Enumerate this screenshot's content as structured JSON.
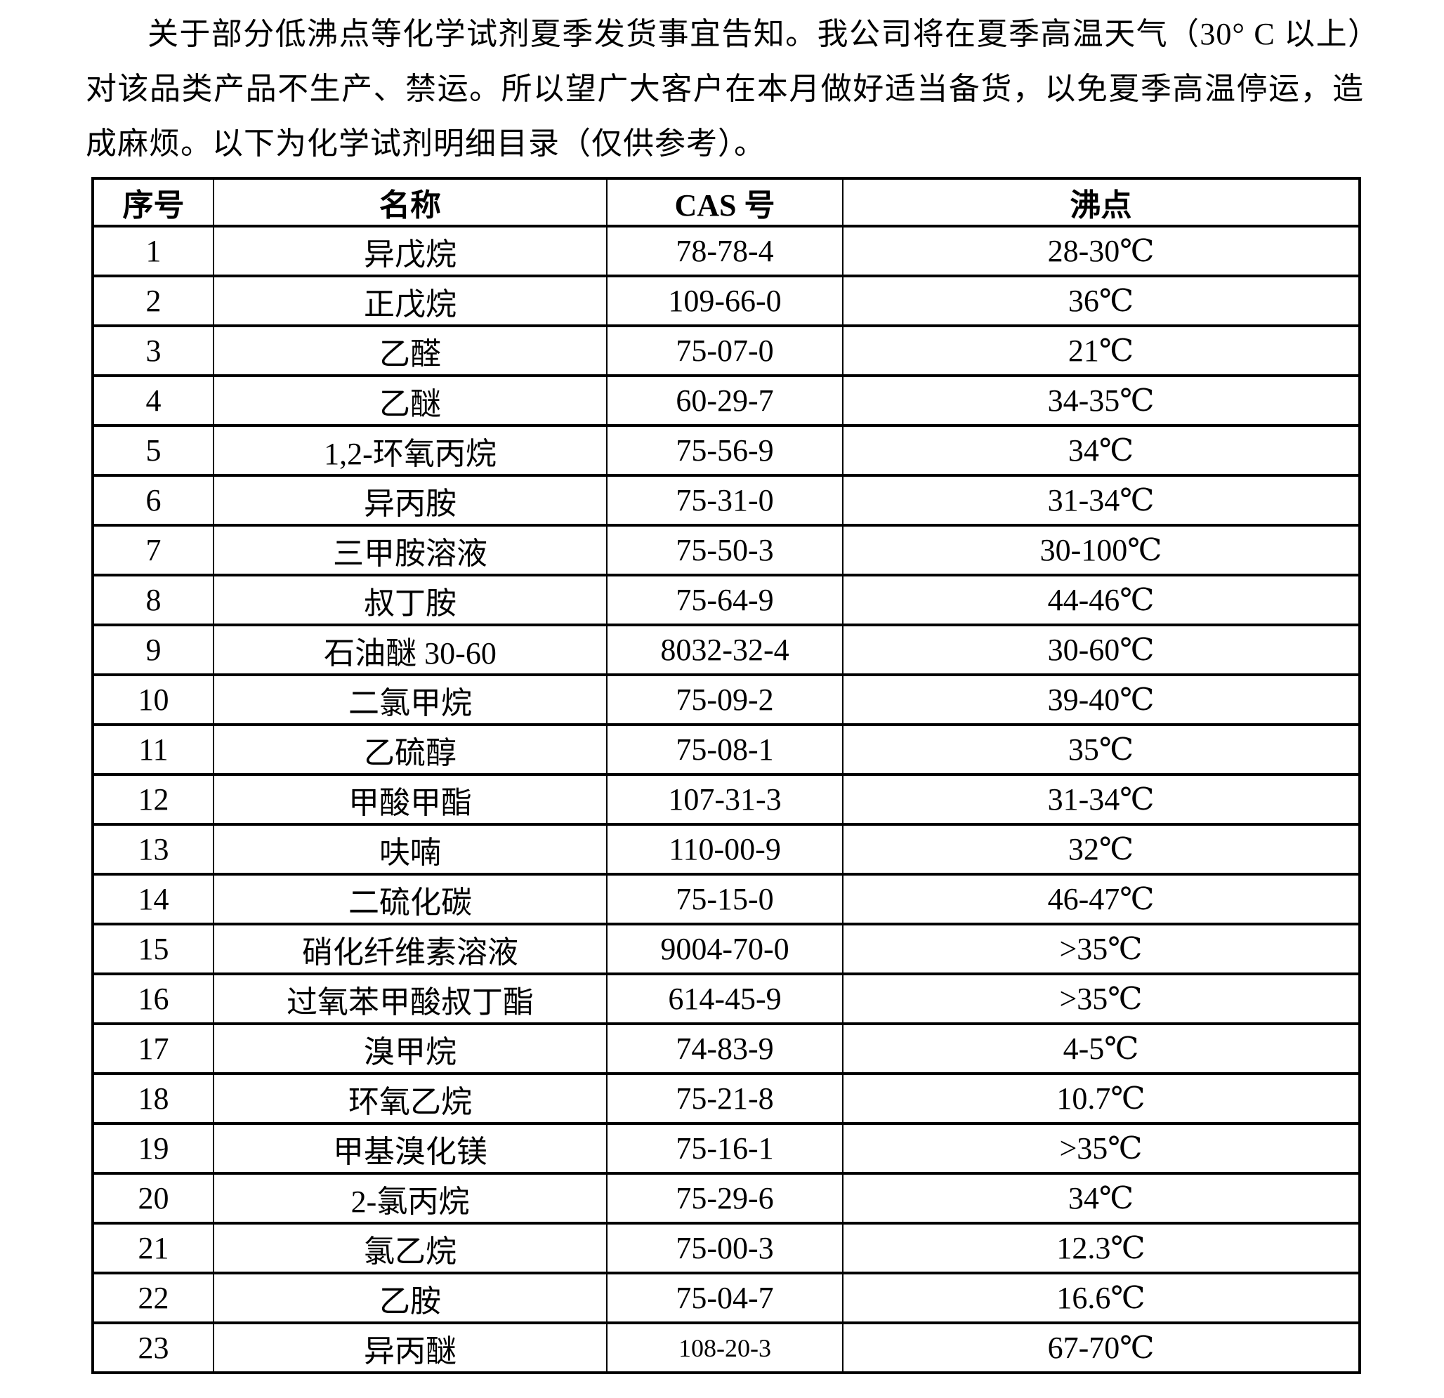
{
  "intro": {
    "text": "关于部分低沸点等化学试剂夏季发货事宜告知。我公司将在夏季高温天气（30° C 以上）对该品类产品不生产、禁运。所以望广大客户在本月做好适当备货，以免夏季高温停运，造成麻烦。以下为化学试剂明细目录（仅供参考）。"
  },
  "table": {
    "headers": [
      "序号",
      "名称",
      "CAS 号",
      "沸点"
    ],
    "rows": [
      {
        "no": "1",
        "name": "异戊烷",
        "cas": "78-78-4",
        "bp": "28-30℃"
      },
      {
        "no": "2",
        "name": "正戊烷",
        "cas": "109-66-0",
        "bp": "36℃"
      },
      {
        "no": "3",
        "name": "乙醛",
        "cas": "75-07-0",
        "bp": "21℃"
      },
      {
        "no": "4",
        "name": "乙醚",
        "cas": "60-29-7",
        "bp": "34-35℃"
      },
      {
        "no": "5",
        "name": "1,2-环氧丙烷",
        "cas": "75-56-9",
        "bp": "34℃"
      },
      {
        "no": "6",
        "name": "异丙胺",
        "cas": "75-31-0",
        "bp": "31-34℃"
      },
      {
        "no": "7",
        "name": "三甲胺溶液",
        "cas": "75-50-3",
        "bp": "30-100℃"
      },
      {
        "no": "8",
        "name": "叔丁胺",
        "cas": "75-64-9",
        "bp": "44-46℃"
      },
      {
        "no": "9",
        "name": "石油醚 30-60",
        "cas": "8032-32-4",
        "bp": "30-60℃"
      },
      {
        "no": "10",
        "name": "二氯甲烷",
        "cas": "75-09-2",
        "bp": "39-40℃"
      },
      {
        "no": "11",
        "name": "乙硫醇",
        "cas": "75-08-1",
        "bp": "35℃"
      },
      {
        "no": "12",
        "name": "甲酸甲酯",
        "cas": "107-31-3",
        "bp": "31-34℃"
      },
      {
        "no": "13",
        "name": "呋喃",
        "cas": "110-00-9",
        "bp": "32℃"
      },
      {
        "no": "14",
        "name": "二硫化碳",
        "cas": "75-15-0",
        "bp": "46-47℃"
      },
      {
        "no": "15",
        "name": "硝化纤维素溶液",
        "cas": "9004-70-0",
        "bp": ">35℃"
      },
      {
        "no": "16",
        "name": "过氧苯甲酸叔丁酯",
        "cas": "614-45-9",
        "bp": ">35℃"
      },
      {
        "no": "17",
        "name": "溴甲烷",
        "cas": "74-83-9",
        "bp": "4-5℃"
      },
      {
        "no": "18",
        "name": "环氧乙烷",
        "cas": "75-21-8",
        "bp": "10.7℃"
      },
      {
        "no": "19",
        "name": "甲基溴化镁",
        "cas": "75-16-1",
        "bp": ">35℃"
      },
      {
        "no": "20",
        "name": "2-氯丙烷",
        "cas": "75-29-6",
        "bp": "34℃"
      },
      {
        "no": "21",
        "name": "氯乙烷",
        "cas": "75-00-3",
        "bp": "12.3℃"
      },
      {
        "no": "22",
        "name": "乙胺",
        "cas": "75-04-7",
        "bp": "16.6℃"
      },
      {
        "no": "23",
        "name": "异丙醚",
        "cas": "108-20-3",
        "bp": "67-70℃"
      }
    ]
  },
  "colors": {
    "text": "#000000",
    "border": "#000000",
    "background": "#ffffff"
  }
}
